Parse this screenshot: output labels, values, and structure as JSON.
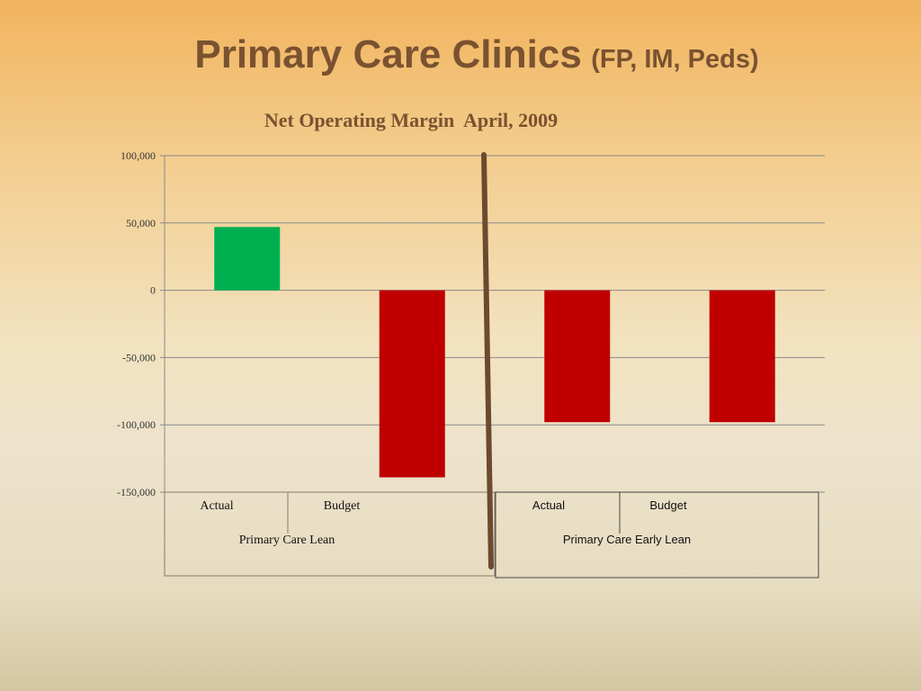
{
  "slide": {
    "title": "Primary Care Clinics",
    "title_suffix": "(FP, IM, Peds)"
  },
  "chart_data": {
    "type": "bar",
    "title": "Net Operating Margin  April, 2009",
    "xlabel": "",
    "ylabel": "",
    "ylim": [
      -150000,
      100000
    ],
    "yticks": [
      100000,
      50000,
      0,
      -50000,
      -100000,
      -150000
    ],
    "ytick_labels": [
      "100,000",
      "50,000",
      "0",
      "-50,000",
      "-100,000",
      "-150,000"
    ],
    "grid": true,
    "legend": "none",
    "groups": [
      {
        "label": "Primary Care Lean",
        "categories": [
          "Actual",
          "Budget"
        ]
      },
      {
        "label": "Primary Care Early Lean",
        "categories": [
          "Actual",
          "Budget"
        ]
      }
    ],
    "categories": [
      "Actual",
      "Budget",
      "Actual",
      "Budget"
    ],
    "values": [
      47000,
      -139000,
      -98000,
      -98000
    ],
    "bar_colors": [
      "#00b050",
      "#c00000",
      "#c00000",
      "#c00000"
    ],
    "divider_color": "#6b4a2e"
  }
}
